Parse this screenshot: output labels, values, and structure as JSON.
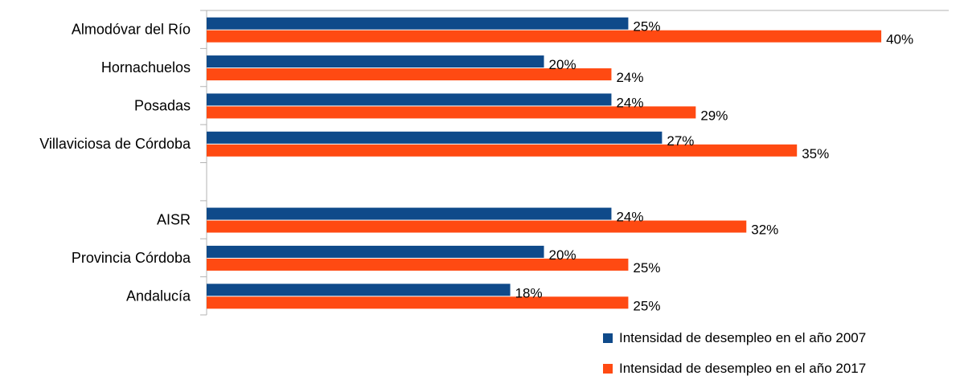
{
  "chart_data": {
    "type": "bar",
    "orientation": "horizontal",
    "categories": [
      "Almodóvar del Río",
      "Hornachuelos",
      "Posadas",
      "Villaviciosa de Córdoba",
      "",
      "AISR",
      "Provincia Córdoba",
      "Andalucía"
    ],
    "series": [
      {
        "name": "Intensidad de desempleo en el año 2007",
        "color": "#0f4a8a",
        "values": [
          25,
          20,
          24,
          27,
          null,
          24,
          20,
          18
        ],
        "labels": [
          "25%",
          "20%",
          "24%",
          "27%",
          "",
          "24%",
          "20%",
          "18%"
        ]
      },
      {
        "name": "Intensidad de desempleo en el año 2017",
        "color": "#ff4a12",
        "values": [
          40,
          24,
          29,
          35,
          null,
          32,
          25,
          25
        ],
        "labels": [
          "40%",
          "24%",
          "29%",
          "35%",
          "",
          "32%",
          "25%",
          "25%"
        ]
      }
    ],
    "xlim": [
      0,
      44
    ],
    "grid": false,
    "legend_position": "bottom-right"
  }
}
